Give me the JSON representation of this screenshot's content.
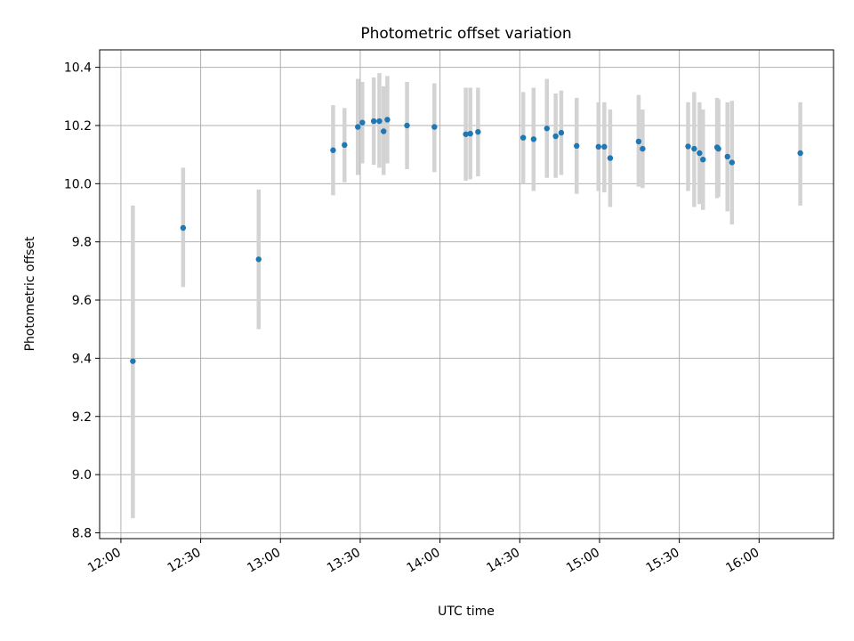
{
  "chart_data": {
    "type": "scatter",
    "title": "Photometric offset variation",
    "xlabel": "UTC time",
    "ylabel": "Photometric offset",
    "x_ticks": [
      "12:00",
      "12:30",
      "13:00",
      "13:30",
      "14:00",
      "14:30",
      "15:00",
      "15:30",
      "16:00"
    ],
    "y_ticks": [
      "8.8",
      "9.0",
      "9.2",
      "9.4",
      "9.6",
      "9.8",
      "10.0",
      "10.2",
      "10.4"
    ],
    "xlim": [
      "11:52",
      "16:28"
    ],
    "ylim": [
      8.78,
      10.46
    ],
    "grid": true,
    "point_color": "#1f77b4",
    "errorbar_color": "#d3d3d3",
    "points": [
      {
        "t": "12:04.5",
        "y": 9.39,
        "lo": 8.85,
        "hi": 9.925
      },
      {
        "t": "12:23.4",
        "y": 9.848,
        "lo": 9.645,
        "hi": 10.055
      },
      {
        "t": "12:51.8",
        "y": 9.74,
        "lo": 9.5,
        "hi": 9.98
      },
      {
        "t": "13:19.8",
        "y": 10.115,
        "lo": 9.96,
        "hi": 10.27
      },
      {
        "t": "13:24.1",
        "y": 10.133,
        "lo": 10.005,
        "hi": 10.26
      },
      {
        "t": "13:29.1",
        "y": 10.195,
        "lo": 10.03,
        "hi": 10.36
      },
      {
        "t": "13:30.8",
        "y": 10.21,
        "lo": 10.07,
        "hi": 10.35
      },
      {
        "t": "13:35.1",
        "y": 10.215,
        "lo": 10.065,
        "hi": 10.365
      },
      {
        "t": "13:37.2",
        "y": 10.215,
        "lo": 10.055,
        "hi": 10.38
      },
      {
        "t": "13:38.8",
        "y": 10.18,
        "lo": 10.03,
        "hi": 10.335
      },
      {
        "t": "13:40.2",
        "y": 10.22,
        "lo": 10.07,
        "hi": 10.37
      },
      {
        "t": "13:47.6",
        "y": 10.2,
        "lo": 10.05,
        "hi": 10.35
      },
      {
        "t": "13:57.9",
        "y": 10.195,
        "lo": 10.04,
        "hi": 10.345
      },
      {
        "t": "14:09.7",
        "y": 10.17,
        "lo": 10.01,
        "hi": 10.33
      },
      {
        "t": "14:11.4",
        "y": 10.172,
        "lo": 10.015,
        "hi": 10.33
      },
      {
        "t": "14:14.3",
        "y": 10.178,
        "lo": 10.025,
        "hi": 10.33
      },
      {
        "t": "14:31.3",
        "y": 10.158,
        "lo": 10.0,
        "hi": 10.315
      },
      {
        "t": "14:35.2",
        "y": 10.153,
        "lo": 9.975,
        "hi": 10.33
      },
      {
        "t": "14:40.2",
        "y": 10.19,
        "lo": 10.02,
        "hi": 10.36
      },
      {
        "t": "14:43.5",
        "y": 10.163,
        "lo": 10.02,
        "hi": 10.31
      },
      {
        "t": "14:45.6",
        "y": 10.175,
        "lo": 10.03,
        "hi": 10.32
      },
      {
        "t": "14:51.4",
        "y": 10.13,
        "lo": 9.965,
        "hi": 10.295
      },
      {
        "t": "14:59.6",
        "y": 10.127,
        "lo": 9.975,
        "hi": 10.28
      },
      {
        "t": "15:01.8",
        "y": 10.127,
        "lo": 9.97,
        "hi": 10.28
      },
      {
        "t": "15:04.0",
        "y": 10.088,
        "lo": 9.92,
        "hi": 10.255
      },
      {
        "t": "15:14.7",
        "y": 10.145,
        "lo": 9.99,
        "hi": 10.305
      },
      {
        "t": "15:16.2",
        "y": 10.12,
        "lo": 9.985,
        "hi": 10.255
      },
      {
        "t": "15:33.3",
        "y": 10.128,
        "lo": 9.975,
        "hi": 10.28
      },
      {
        "t": "15:35.6",
        "y": 10.12,
        "lo": 9.92,
        "hi": 10.315
      },
      {
        "t": "15:37.6",
        "y": 10.105,
        "lo": 9.93,
        "hi": 10.28
      },
      {
        "t": "15:38.9",
        "y": 10.083,
        "lo": 9.91,
        "hi": 10.255
      },
      {
        "t": "15:44.2",
        "y": 10.125,
        "lo": 9.95,
        "hi": 10.295
      },
      {
        "t": "15:44.7",
        "y": 10.12,
        "lo": 9.955,
        "hi": 10.29
      },
      {
        "t": "15:48.1",
        "y": 10.093,
        "lo": 9.905,
        "hi": 10.28
      },
      {
        "t": "15:49.8",
        "y": 10.073,
        "lo": 9.86,
        "hi": 10.285
      },
      {
        "t": "16:15.5",
        "y": 10.105,
        "lo": 9.925,
        "hi": 10.28
      }
    ]
  }
}
